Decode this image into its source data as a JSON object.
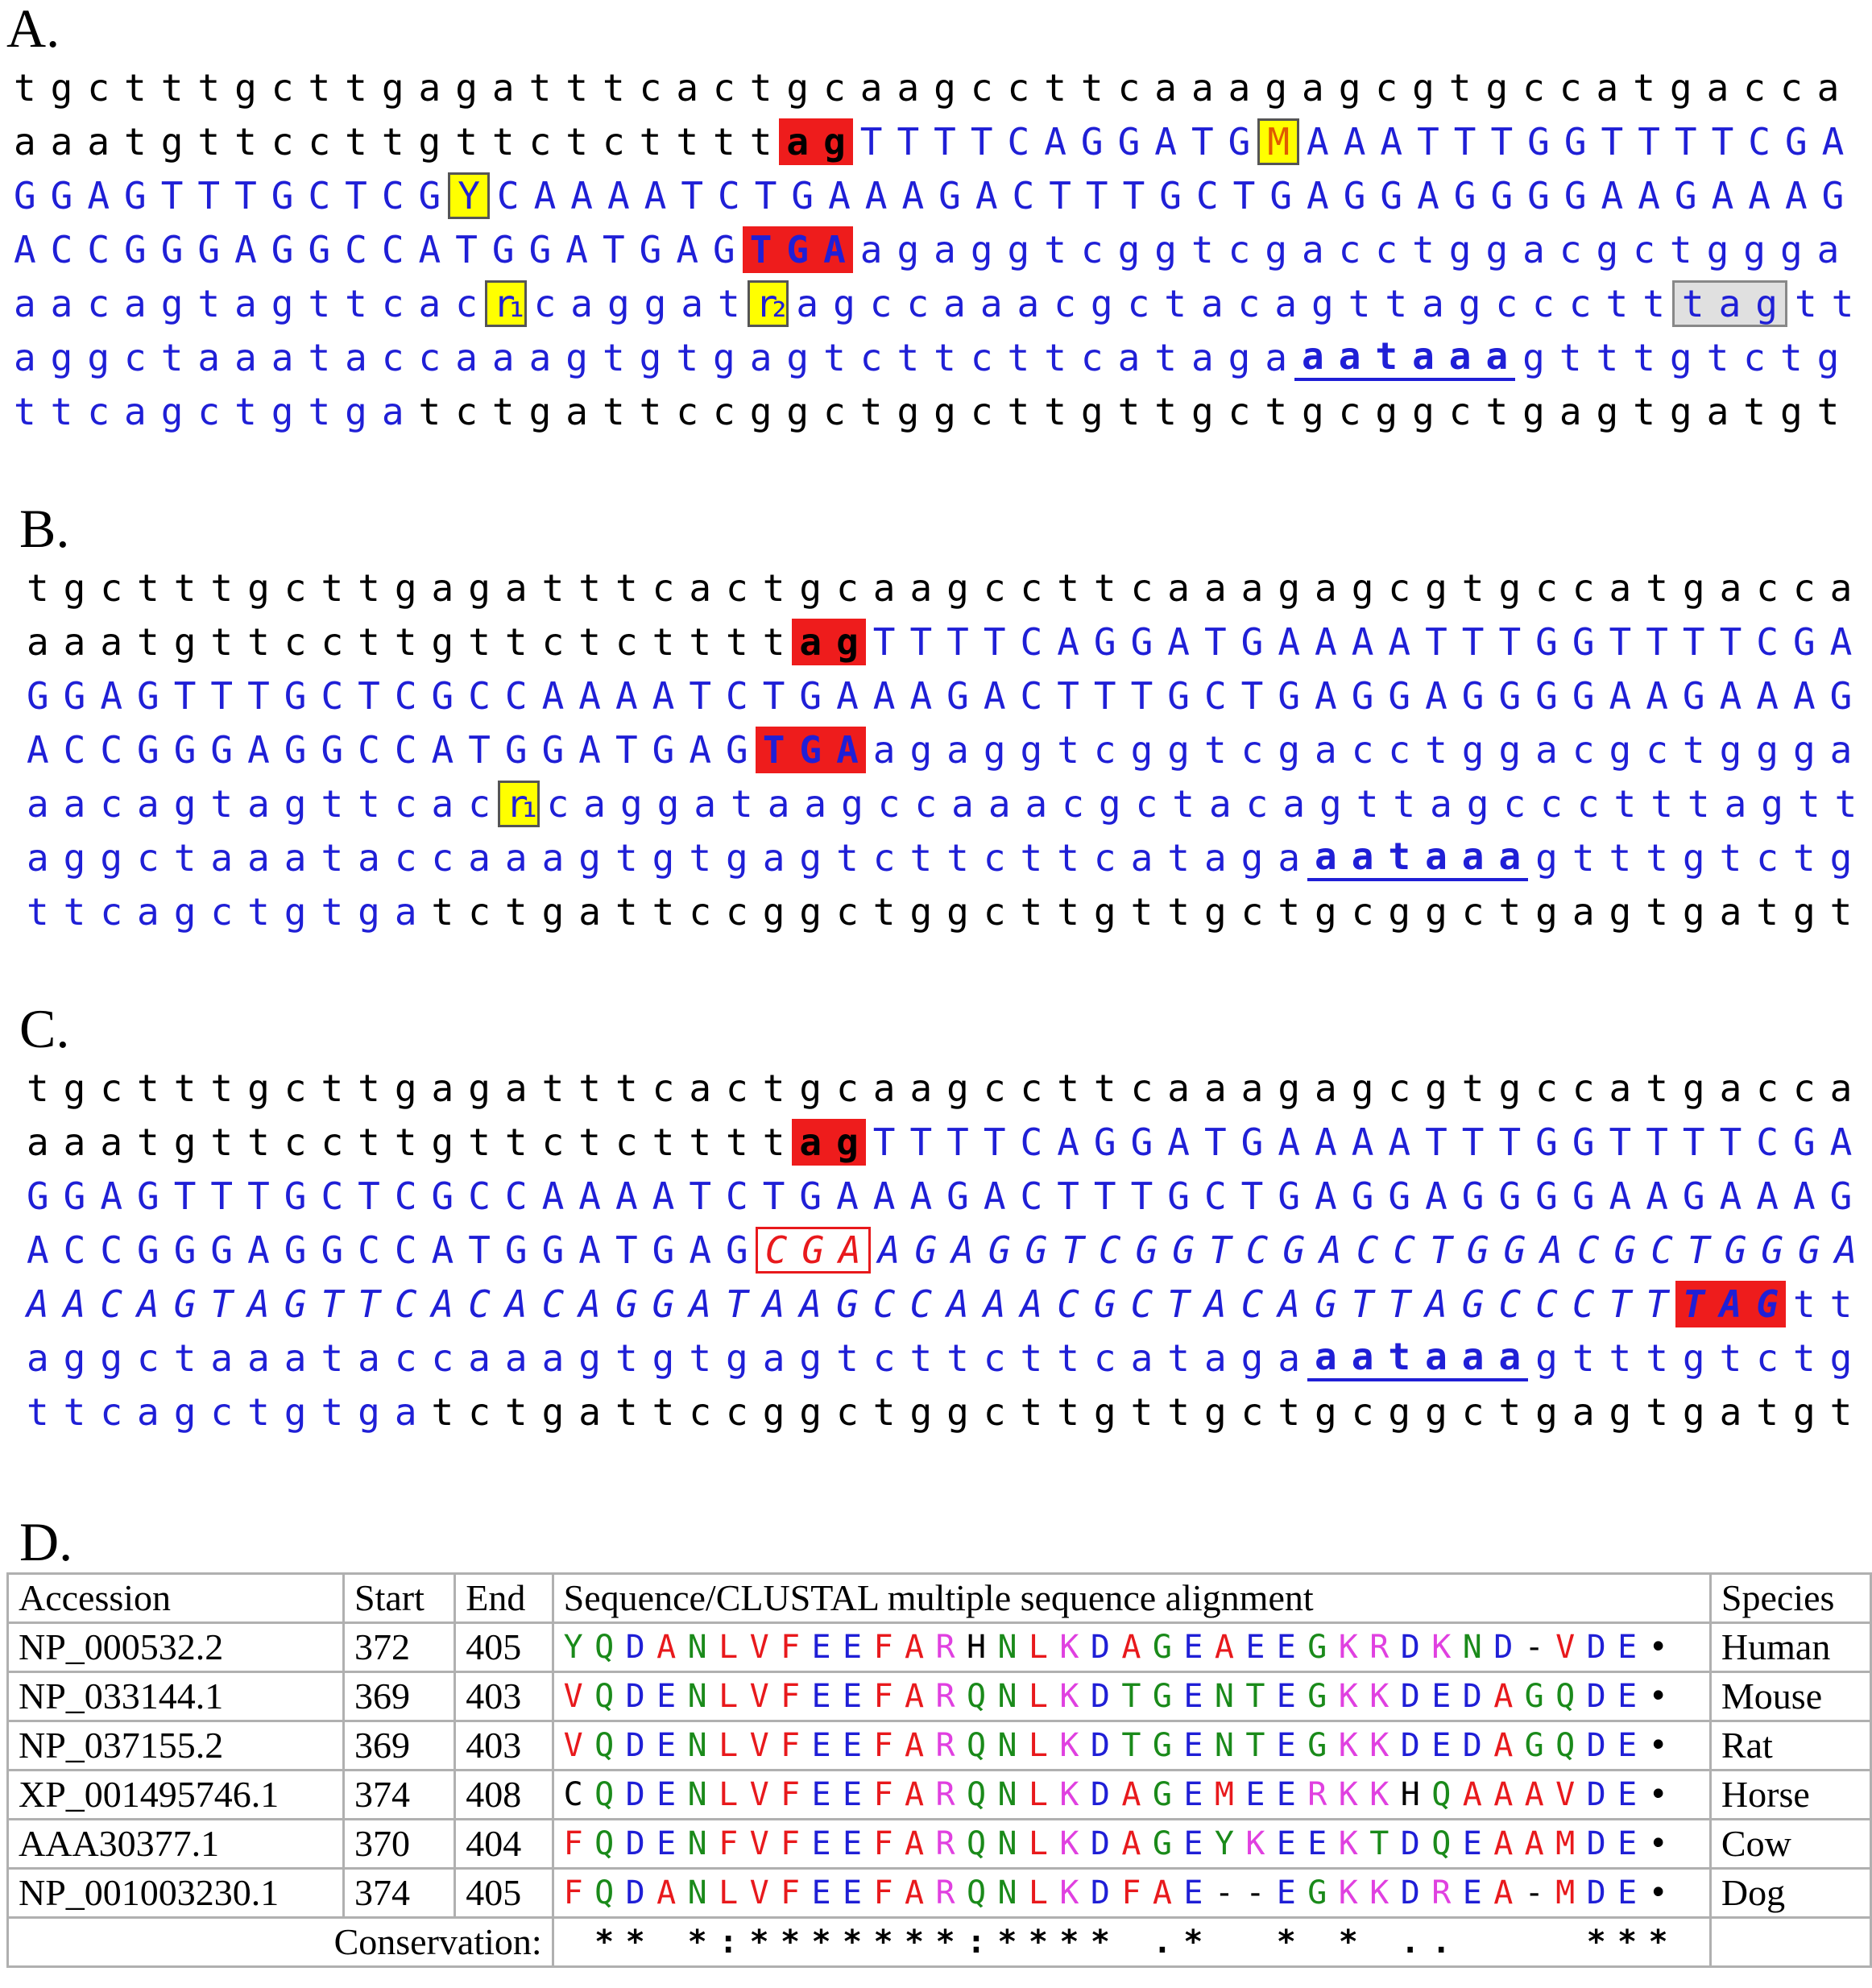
{
  "panels": [
    {
      "label": "A.",
      "lines": [
        [
          {
            "text": "tgctttgcttgagatttcactgcaagccttcaaagagcgtgccatgacca",
            "color": "#000000"
          }
        ],
        [
          {
            "text": "aaatgttccttgttctctttt",
            "color": "#000000"
          },
          {
            "text": "ag",
            "color": "#000000",
            "bold": true,
            "background": "#ee1c1c"
          },
          {
            "text": "TTTTCAGGATG",
            "color": "#1f1fd6"
          },
          {
            "text": "M",
            "color": "#e05a00",
            "background": "#ffff00",
            "border": "#555555"
          },
          {
            "text": "AAATTTGGTTTTCGA",
            "color": "#1f1fd6"
          }
        ],
        [
          {
            "text": "GGAGTTTGCTCG",
            "color": "#1f1fd6"
          },
          {
            "text": "Y",
            "color": "#1f1fd6",
            "background": "#ffff00",
            "border": "#555555"
          },
          {
            "text": "CAAAATCTGAAAGACTTTGCTGAGGAGGGGAAGAAAG",
            "color": "#1f1fd6"
          }
        ],
        [
          {
            "text": "ACCGGGAGGCCATGGATGAG",
            "color": "#1f1fd6"
          },
          {
            "text": "TGA",
            "color": "#1f1fd6",
            "bold": true,
            "background": "#ee1c1c"
          },
          {
            "text": "agaggtcggtcgacctggacgctggga",
            "color": "#1f1fd6"
          }
        ],
        [
          {
            "text": "aacagtagttcac",
            "color": "#1f1fd6"
          },
          {
            "text": "r₁",
            "color": "#1f1fd6",
            "background": "#ffff00",
            "border": "#555555"
          },
          {
            "text": "caggat",
            "color": "#1f1fd6"
          },
          {
            "text": "r₂",
            "color": "#1f1fd6",
            "background": "#ffff00",
            "border": "#555555"
          },
          {
            "text": "agccaaacgctacagttagccctt",
            "color": "#1f1fd6"
          },
          {
            "text": "tag",
            "color": "#1f1fd6",
            "background": "#e0e0e0",
            "border": "#888888"
          },
          {
            "text": "tt",
            "color": "#1f1fd6"
          }
        ],
        [
          {
            "text": "aggctaaataccaaagtgtgagtcttcttcataga",
            "color": "#1f1fd6"
          },
          {
            "text": "aataaa",
            "color": "#1f1fd6",
            "bold": true,
            "underline": true
          },
          {
            "text": "gtttgtctg",
            "color": "#1f1fd6"
          }
        ],
        [
          {
            "text": "ttcagctgtga",
            "color": "#1f1fd6"
          },
          {
            "text": "tctgattccggctggcttgttgctgcggctgagtgatgt",
            "color": "#000000"
          }
        ]
      ]
    },
    {
      "label": "B.",
      "lines": [
        [
          {
            "text": "tgctttgcttgagatttcactgcaagccttcaaagagcgtgccatgacca",
            "color": "#000000"
          }
        ],
        [
          {
            "text": "aaatgttccttgttctctttt",
            "color": "#000000"
          },
          {
            "text": "ag",
            "color": "#000000",
            "bold": true,
            "background": "#ee1c1c"
          },
          {
            "text": "TTTTCAGGATGAAAATTTGGTTTTCGA",
            "color": "#1f1fd6"
          }
        ],
        [
          {
            "text": "GGAGTTTGCTCGCCAAAATCTGAAAGACTTTGCTGAGGAGGGGAAGAAAG",
            "color": "#1f1fd6"
          }
        ],
        [
          {
            "text": "ACCGGGAGGCCATGGATGAG",
            "color": "#1f1fd6"
          },
          {
            "text": "TGA",
            "color": "#1f1fd6",
            "bold": true,
            "background": "#ee1c1c"
          },
          {
            "text": "agaggtcggtcgacctggacgctggga",
            "color": "#1f1fd6"
          }
        ],
        [
          {
            "text": "aacagtagttcac",
            "color": "#1f1fd6"
          },
          {
            "text": "r₁",
            "color": "#1f1fd6",
            "background": "#ffff00",
            "border": "#555555"
          },
          {
            "text": "caggataagccaaacgctacagttagccctttagtt",
            "color": "#1f1fd6"
          }
        ],
        [
          {
            "text": "aggctaaataccaaagtgtgagtcttcttcataga",
            "color": "#1f1fd6"
          },
          {
            "text": "aataaa",
            "color": "#1f1fd6",
            "bold": true,
            "underline": true
          },
          {
            "text": "gtttgtctg",
            "color": "#1f1fd6"
          }
        ],
        [
          {
            "text": "ttcagctgtga",
            "color": "#1f1fd6"
          },
          {
            "text": "tctgattccggctggcttgttgctgcggctgagtgatgt",
            "color": "#000000"
          }
        ]
      ]
    },
    {
      "label": "C.",
      "lines": [
        [
          {
            "text": "tgctttgcttgagatttcactgcaagccttcaaagagcgtgccatgacca",
            "color": "#000000"
          }
        ],
        [
          {
            "text": "aaatgttccttgttctctttt",
            "color": "#000000"
          },
          {
            "text": "ag",
            "color": "#000000",
            "bold": true,
            "background": "#ee1c1c"
          },
          {
            "text": "TTTTCAGGATGAAAATTTGGTTTTCGA",
            "color": "#1f1fd6"
          }
        ],
        [
          {
            "text": "GGAGTTTGCTCGCCAAAATCTGAAAGACTTTGCTGAGGAGGGGAAGAAAG",
            "color": "#1f1fd6"
          }
        ],
        [
          {
            "text": "ACCGGGAGGCCATGGATGAG",
            "color": "#1f1fd6"
          },
          {
            "text": "CGA",
            "color": "#e8191c",
            "italic": true,
            "border": "#e8191c"
          },
          {
            "text": "AGAGGTCGGTCGACCTGGACGCTGGGA",
            "color": "#1f1fd6",
            "italic": true
          }
        ],
        [
          {
            "text": "AACAGTAGTTCACACAGGATAAGCCAAACGCTACAGTTAGCCCTT",
            "color": "#1f1fd6",
            "italic": true
          },
          {
            "text": "TAG",
            "color": "#1f1fd6",
            "italic": true,
            "bold": true,
            "background": "#ee1c1c"
          },
          {
            "text": "tt",
            "color": "#1f1fd6"
          }
        ],
        [
          {
            "text": "aggctaaataccaaagtgtgagtcttcttcataga",
            "color": "#1f1fd6"
          },
          {
            "text": "aataaa",
            "color": "#1f1fd6",
            "bold": true,
            "underline": true
          },
          {
            "text": "gtttgtctg",
            "color": "#1f1fd6"
          }
        ],
        [
          {
            "text": "ttcagctgtga",
            "color": "#1f1fd6"
          },
          {
            "text": "tctgattccggctggcttgttgctgcggctgagtgatgt",
            "color": "#000000"
          }
        ]
      ]
    }
  ],
  "table": {
    "label": "D.",
    "header": [
      "Accession",
      "Start",
      "End",
      "Sequence/CLUSTAL multiple sequence alignment",
      "Species"
    ],
    "rows": [
      [
        "NP_000532.2",
        372,
        405,
        "YQDANLVFEEFARHNLKDAGEAEEGKRDKND-VDE•",
        "Human"
      ],
      [
        "NP_033144.1",
        369,
        403,
        "VQDENLVFEEFARQNLKDTGENTEGKKDEDAGQDE•",
        "Mouse"
      ],
      [
        "NP_037155.2",
        369,
        403,
        "VQDENLVFEEFARQNLKDTGENTEGKKDEDAGQDE•",
        "Rat"
      ],
      [
        "XP_001495746.1",
        374,
        408,
        "CQDENLVFEEFARQNLKDAGEMEERKKHQAAAVDE•",
        "Horse"
      ],
      [
        "AAA30377.1",
        370,
        404,
        "FQDENFVFEEFARQNLKDAGEYKEEKTDQEAAMDE•",
        "Cow"
      ],
      [
        "NP_001003230.1",
        374,
        405,
        "FQDANLVFEEFARQNLKDFAE--EGKKDREA-MDE•",
        "Dog"
      ]
    ],
    "conservation_label": "Conservation:",
    "conservation": " ** *:*******:**** .*  * * ..    ***"
  }
}
